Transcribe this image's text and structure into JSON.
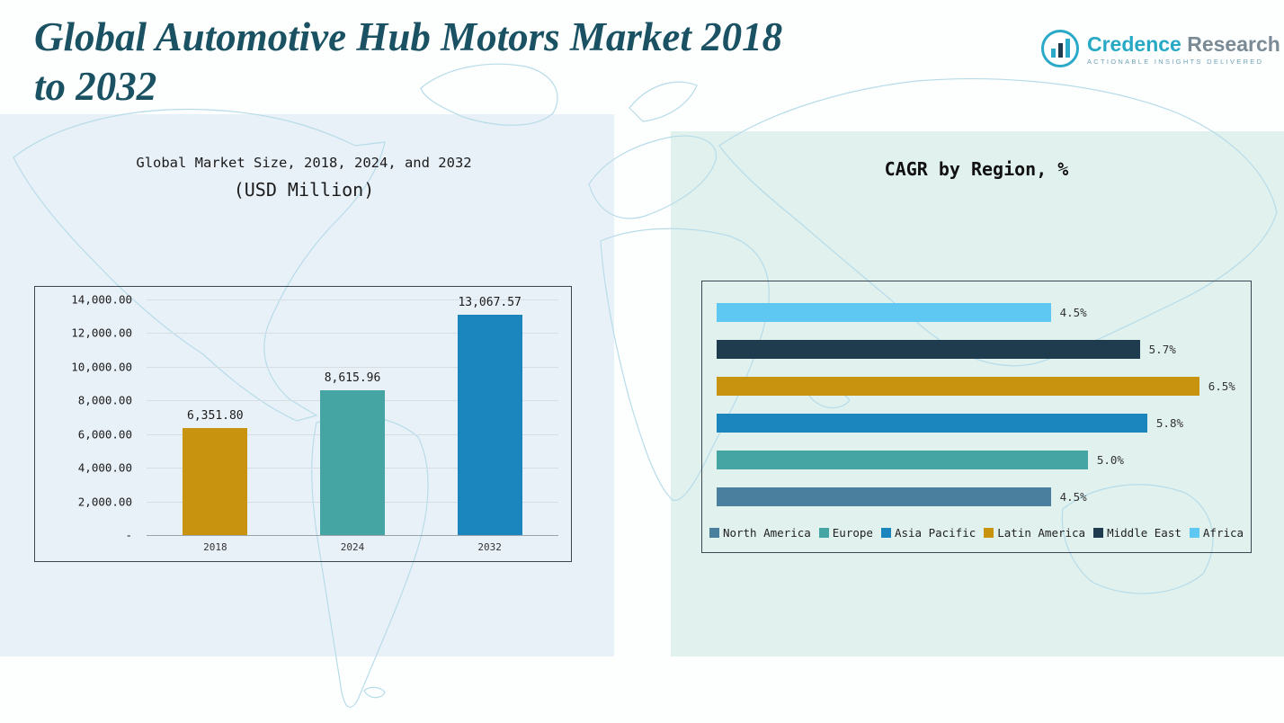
{
  "header": {
    "title_line1": "Global Automotive Hub Motors Market 2018",
    "title_line2": "to 2032"
  },
  "logo": {
    "brand_primary": "Credence",
    "brand_secondary": "Research",
    "tagline": "Actionable Insights Delivered"
  },
  "market_chart": {
    "title_line1": "Global Market Size, 2018, 2024, and 2032",
    "title_line2": "(USD Million)"
  },
  "cagr_chart": {
    "title": "CAGR by Region, %"
  },
  "colors": {
    "title_text": "#1a5263",
    "panel_left": "#e9f1f8",
    "panel_right": "#e0f1ee",
    "gold": "#c8930f",
    "teal": "#44a5a2",
    "blue": "#1b85be",
    "dark_navy": "#1e3c4e",
    "sky": "#5ec8f2",
    "steel": "#4a7f9e"
  },
  "chart_data": [
    {
      "type": "bar",
      "title": "Global Market Size, 2018, 2024, and 2032 (USD Million)",
      "categories": [
        "2018",
        "2024",
        "2032"
      ],
      "values": [
        6351.8,
        8615.96,
        13067.57
      ],
      "value_labels": [
        "6,351.80",
        "8,615.96",
        "13,067.57"
      ],
      "colors": [
        "#c8930f",
        "#44a5a2",
        "#1b85be"
      ],
      "xlabel": "",
      "ylabel": "",
      "ylim": [
        0,
        14000
      ],
      "ytick_labels": [
        "14,000.00",
        "12,000.00",
        "10,000.00",
        "8,000.00",
        "6,000.00",
        "4,000.00",
        "2,000.00",
        "-"
      ],
      "grid": true,
      "legend_position": "none"
    },
    {
      "type": "bar",
      "orientation": "horizontal",
      "title": "CAGR by Region, %",
      "categories_top_to_bottom": [
        "Africa",
        "Middle East",
        "Latin America",
        "Asia Pacific",
        "Europe",
        "North America"
      ],
      "values": [
        4.5,
        5.7,
        6.5,
        5.8,
        5.0,
        4.5
      ],
      "value_labels": [
        "4.5%",
        "5.7%",
        "6.5%",
        "5.8%",
        "5.0%",
        "4.5%"
      ],
      "colors": [
        "#5ec8f2",
        "#1e3c4e",
        "#c8930f",
        "#1b85be",
        "#44a5a2",
        "#4a7f9e"
      ],
      "xlim": [
        0,
        7
      ],
      "grid": false,
      "legend_position": "bottom",
      "legend": [
        "North America",
        "Europe",
        "Asia Pacific",
        "Latin America",
        "Middle East",
        "Africa"
      ]
    }
  ]
}
